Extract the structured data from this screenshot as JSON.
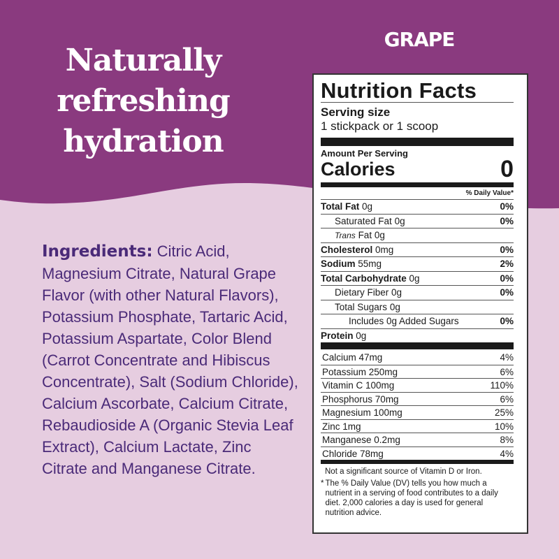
{
  "colors": {
    "top": "#8a3a7f",
    "bottom": "#e6cde0",
    "ingredients_text": "#4a2a78"
  },
  "headline": [
    "Naturally",
    "refreshing",
    "hydration"
  ],
  "flavor": "GRAPE",
  "ingredients": {
    "label": "Ingredients:",
    "text": " Citric Acid, Magnesium Citrate, Natural Grape Flavor (with other Natural Flavors), Potassium Phosphate, Tartaric Acid, Potassium Aspartate, Color Blend (Carrot Concentrate and Hibiscus Concentrate), Salt (Sodium Chloride), Calcium Ascorbate, Calcium Citrate, Rebaudioside A (Organic Stevia Leaf Extract), Calcium Lactate, Zinc Citrate and Manganese Citrate."
  },
  "label": {
    "title": "Nutrition Facts",
    "serving_size_label": "Serving size",
    "serving_size": "1 stickpack or 1 scoop",
    "amount_per_serving": "Amount Per Serving",
    "calories_label": "Calories",
    "calories": "0",
    "dv_header": "% Daily Value*",
    "nutrients": [
      {
        "name": "Total Fat",
        "amount": "0g",
        "dv": "0%"
      },
      {
        "name": "Saturated Fat",
        "amount": "0g",
        "dv": "0%"
      },
      {
        "name": "Trans",
        "amount": "Fat 0g",
        "dv": ""
      },
      {
        "name": "Cholesterol",
        "amount": "0mg",
        "dv": "0%"
      },
      {
        "name": "Sodium",
        "amount": "55mg",
        "dv": "2%"
      },
      {
        "name": "Total Carbohydrate",
        "amount": "0g",
        "dv": "0%"
      },
      {
        "name": "Dietary Fiber",
        "amount": "0g",
        "dv": "0%"
      },
      {
        "name": "Total Sugars",
        "amount": "0g",
        "dv": ""
      },
      {
        "name": "Includes 0g Added Sugars",
        "amount": "",
        "dv": "0%"
      },
      {
        "name": "Protein",
        "amount": "0g",
        "dv": ""
      }
    ],
    "minerals": [
      {
        "name": "Calcium 47mg",
        "dv": "4%"
      },
      {
        "name": "Potassium 250mg",
        "dv": "6%"
      },
      {
        "name": "Vitamin C 100mg",
        "dv": "110%"
      },
      {
        "name": "Phosphorus 70mg",
        "dv": "6%"
      },
      {
        "name": "Magnesium 100mg",
        "dv": "25%"
      },
      {
        "name": "Zinc 1mg",
        "dv": "10%"
      },
      {
        "name": "Manganese 0.2mg",
        "dv": "8%"
      },
      {
        "name": "Chloride 78mg",
        "dv": "4%"
      }
    ],
    "note": "Not a significant source of Vitamin D or Iron.",
    "footnote_star": "*",
    "footnote": "The % Daily Value (DV) tells you how much a nutrient in a serving of food contributes to a daily diet. 2,000 calories a day is used for general nutrition advice."
  }
}
